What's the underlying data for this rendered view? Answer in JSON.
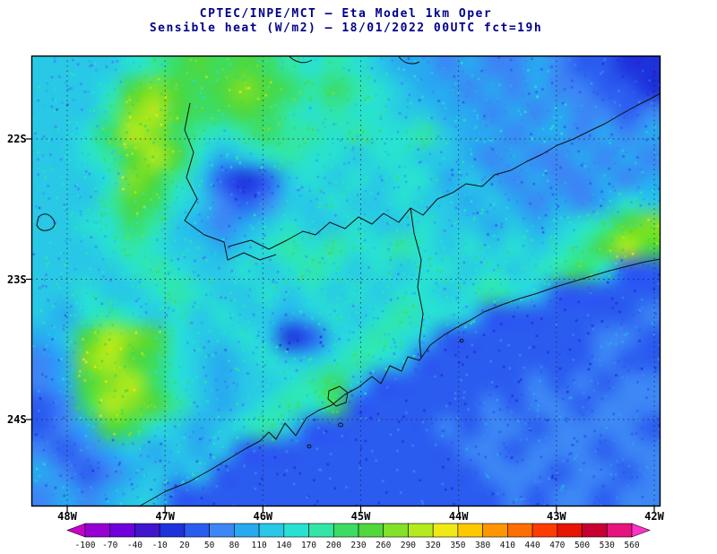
{
  "title": {
    "line1": "CPTEC/INPE/MCT —  Eta Model 1km Oper",
    "line2": "Sensible heat (W/m2) — 18/01/2022 00UTC fct=19h"
  },
  "map": {
    "lat_ticks": [
      "22S",
      "23S",
      "24S"
    ],
    "lon_ticks": [
      "48W",
      "47W",
      "46W",
      "45W",
      "44W",
      "43W",
      "42W"
    ]
  },
  "colorbar": {
    "ticks": [
      "-100",
      "-70",
      "-40",
      "-10",
      "20",
      "50",
      "80",
      "110",
      "140",
      "170",
      "200",
      "230",
      "260",
      "290",
      "320",
      "350",
      "380",
      "410",
      "440",
      "470",
      "500",
      "530",
      "560"
    ]
  },
  "chart_data": {
    "type": "heatmap",
    "title": "CPTEC/INPE/MCT — Eta Model 1km Oper",
    "subtitle": "Sensible heat (W/m2) — 18/01/2022 00UTC fct=19h",
    "variable": "Sensible heat",
    "units": "W/m2",
    "x_ticks": [
      "48W",
      "47W",
      "46W",
      "45W",
      "44W",
      "43W",
      "42W"
    ],
    "y_ticks": [
      "22S",
      "23S",
      "24S"
    ],
    "x_range_deg": [
      -48.4,
      -41.9
    ],
    "y_range_deg": [
      -24.65,
      -21.4
    ],
    "levels": [
      -100,
      -70,
      -40,
      -10,
      20,
      50,
      80,
      110,
      140,
      170,
      200,
      230,
      260,
      290,
      320,
      350,
      380,
      410,
      440,
      470,
      500,
      530,
      560
    ],
    "palette": [
      "#c800c8",
      "#9600d2",
      "#6e00dc",
      "#4114cd",
      "#1e32dc",
      "#2b5cf0",
      "#3c86f5",
      "#28aaf0",
      "#28c8e6",
      "#28e1d2",
      "#32e6a5",
      "#3cdc64",
      "#50d83c",
      "#82e128",
      "#b4eb1e",
      "#f0ea14",
      "#ffc800",
      "#ff9600",
      "#ff6e00",
      "#ff3c00",
      "#e61400",
      "#c80032",
      "#e6147d",
      "#ff32c8"
    ],
    "grid_rows": 20,
    "grid_cols": 28,
    "values": [
      [
        125,
        125,
        110,
        125,
        155,
        185,
        215,
        245,
        215,
        245,
        215,
        185,
        155,
        185,
        155,
        125,
        95,
        95,
        65,
        95,
        65,
        65,
        95,
        65,
        35,
        35,
        5,
        5
      ],
      [
        110,
        125,
        125,
        155,
        245,
        275,
        245,
        215,
        245,
        275,
        245,
        215,
        185,
        215,
        185,
        155,
        125,
        95,
        95,
        65,
        95,
        65,
        95,
        65,
        65,
        35,
        35,
        5
      ],
      [
        125,
        110,
        125,
        185,
        275,
        305,
        245,
        215,
        215,
        245,
        215,
        185,
        155,
        185,
        155,
        155,
        125,
        125,
        95,
        95,
        65,
        95,
        65,
        95,
        65,
        65,
        35,
        65
      ],
      [
        125,
        125,
        155,
        215,
        305,
        275,
        215,
        185,
        155,
        185,
        215,
        185,
        185,
        155,
        185,
        155,
        155,
        185,
        125,
        95,
        95,
        65,
        95,
        95,
        65,
        95,
        65,
        95
      ],
      [
        110,
        125,
        155,
        185,
        245,
        305,
        245,
        155,
        95,
        125,
        155,
        185,
        155,
        155,
        125,
        155,
        155,
        125,
        125,
        95,
        65,
        95,
        65,
        65,
        95,
        65,
        95,
        65
      ],
      [
        125,
        110,
        125,
        155,
        275,
        245,
        185,
        125,
        35,
        5,
        35,
        125,
        155,
        125,
        155,
        125,
        155,
        155,
        95,
        125,
        95,
        65,
        95,
        65,
        65,
        95,
        65,
        95
      ],
      [
        110,
        125,
        125,
        185,
        245,
        215,
        155,
        125,
        65,
        35,
        65,
        125,
        125,
        155,
        125,
        125,
        155,
        125,
        125,
        95,
        125,
        95,
        65,
        95,
        65,
        95,
        155,
        125
      ],
      [
        125,
        125,
        155,
        155,
        215,
        185,
        125,
        95,
        65,
        95,
        125,
        155,
        125,
        125,
        155,
        125,
        125,
        155,
        125,
        125,
        95,
        125,
        95,
        125,
        155,
        185,
        245,
        275
      ],
      [
        110,
        125,
        125,
        155,
        185,
        155,
        125,
        125,
        95,
        125,
        155,
        185,
        155,
        185,
        155,
        155,
        185,
        155,
        125,
        155,
        125,
        155,
        125,
        155,
        185,
        245,
        305,
        245
      ],
      [
        125,
        110,
        125,
        125,
        155,
        185,
        155,
        125,
        125,
        155,
        125,
        155,
        185,
        155,
        125,
        155,
        125,
        155,
        155,
        125,
        155,
        125,
        155,
        185,
        215,
        155,
        35,
        35
      ],
      [
        110,
        125,
        155,
        125,
        125,
        155,
        185,
        155,
        125,
        125,
        155,
        125,
        155,
        125,
        155,
        125,
        155,
        155,
        125,
        155,
        185,
        155,
        110,
        35,
        35,
        35,
        35,
        35
      ],
      [
        125,
        95,
        155,
        185,
        155,
        125,
        155,
        125,
        155,
        125,
        125,
        95,
        125,
        155,
        125,
        155,
        185,
        155,
        155,
        110,
        35,
        35,
        35,
        35,
        35,
        35,
        35,
        65
      ],
      [
        95,
        125,
        245,
        305,
        275,
        245,
        155,
        125,
        125,
        155,
        125,
        5,
        35,
        125,
        155,
        185,
        155,
        125,
        35,
        35,
        35,
        35,
        35,
        35,
        35,
        65,
        65,
        35
      ],
      [
        65,
        95,
        275,
        305,
        245,
        215,
        155,
        125,
        95,
        125,
        155,
        125,
        125,
        155,
        185,
        155,
        110,
        35,
        35,
        35,
        35,
        35,
        35,
        35,
        35,
        65,
        35,
        35
      ],
      [
        65,
        95,
        245,
        275,
        305,
        215,
        155,
        125,
        95,
        125,
        125,
        155,
        185,
        215,
        110,
        35,
        35,
        35,
        35,
        35,
        35,
        35,
        65,
        35,
        65,
        35,
        65,
        65
      ],
      [
        35,
        65,
        215,
        305,
        275,
        245,
        185,
        125,
        95,
        125,
        155,
        185,
        155,
        215,
        35,
        35,
        35,
        35,
        35,
        35,
        65,
        35,
        65,
        65,
        35,
        65,
        65,
        65
      ],
      [
        35,
        65,
        95,
        245,
        215,
        155,
        125,
        95,
        125,
        155,
        185,
        110,
        35,
        35,
        35,
        35,
        35,
        35,
        65,
        35,
        65,
        65,
        35,
        65,
        65,
        65,
        65,
        35
      ],
      [
        65,
        35,
        65,
        95,
        125,
        95,
        125,
        95,
        110,
        35,
        35,
        35,
        35,
        35,
        35,
        35,
        35,
        35,
        35,
        65,
        65,
        35,
        65,
        65,
        65,
        35,
        65,
        65
      ],
      [
        95,
        65,
        35,
        65,
        95,
        125,
        95,
        110,
        35,
        35,
        35,
        35,
        35,
        35,
        35,
        35,
        35,
        35,
        35,
        35,
        65,
        65,
        65,
        35,
        65,
        65,
        35,
        65
      ],
      [
        65,
        95,
        65,
        95,
        110,
        110,
        35,
        35,
        35,
        35,
        35,
        35,
        35,
        35,
        35,
        35,
        35,
        35,
        35,
        35,
        35,
        65,
        35,
        65,
        65,
        35,
        65,
        65
      ]
    ]
  }
}
